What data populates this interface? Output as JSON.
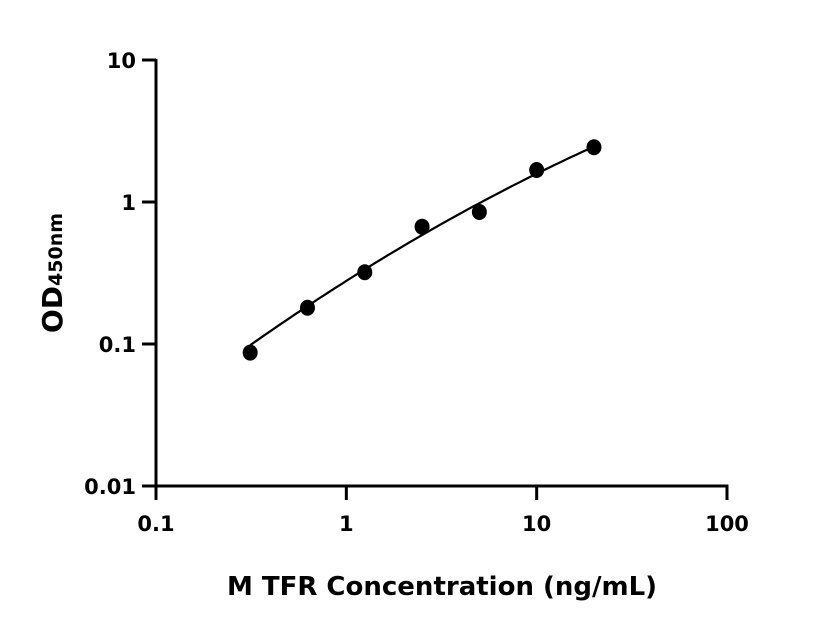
{
  "chart_data": {
    "type": "scatter",
    "title": "",
    "xlabel": "M TFR Concentration (ng/mL)",
    "ylabel": {
      "main": "OD",
      "subscript": "450nm"
    },
    "xscale": "log",
    "yscale": "log",
    "xlim": [
      0.1,
      100
    ],
    "ylim": [
      0.01,
      10
    ],
    "xticks": [
      "0.1",
      "1",
      "10",
      "100"
    ],
    "yticks": [
      "0.01",
      "0.1",
      "1",
      "10"
    ],
    "grid": false,
    "legend": "none",
    "marker_color": "#000000",
    "series": [
      {
        "x": [
          0.3125,
          0.625,
          1.25,
          2.5,
          5,
          10,
          20
        ],
        "y": [
          0.087,
          0.18,
          0.32,
          0.67,
          0.85,
          1.68,
          2.43
        ]
      }
    ],
    "fit_curve": {
      "x": [
        0.3125,
        0.625,
        1.25,
        2.5,
        5,
        10,
        20
      ],
      "y": [
        0.1,
        0.18,
        0.33,
        0.6,
        0.98,
        1.6,
        2.43
      ]
    }
  }
}
